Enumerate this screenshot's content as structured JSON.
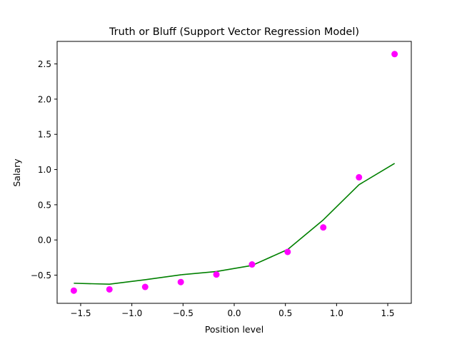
{
  "chart_data": {
    "type": "scatter",
    "title": "Truth or Bluff (Support Vector Regression Model)",
    "xlabel": "Position level",
    "ylabel": "Salary",
    "xlim": [
      -1.73,
      1.73
    ],
    "ylim": [
      -0.9,
      2.82
    ],
    "xticks": [
      {
        "value": -1.5,
        "label": "−1.5"
      },
      {
        "value": -1.0,
        "label": "−1.0"
      },
      {
        "value": -0.5,
        "label": "−0.5"
      },
      {
        "value": 0.0,
        "label": "0.0"
      },
      {
        "value": 0.5,
        "label": "0.5"
      },
      {
        "value": 1.0,
        "label": "1.0"
      },
      {
        "value": 1.5,
        "label": "1.5"
      }
    ],
    "yticks": [
      {
        "value": -0.5,
        "label": "−0.5"
      },
      {
        "value": 0.0,
        "label": "0.0"
      },
      {
        "value": 0.5,
        "label": "0.5"
      },
      {
        "value": 1.0,
        "label": "1.0"
      },
      {
        "value": 1.5,
        "label": "1.5"
      },
      {
        "value": 2.0,
        "label": "2.0"
      },
      {
        "value": 2.5,
        "label": "2.5"
      }
    ],
    "grid": false,
    "legend": "none",
    "series": [
      {
        "kind": "scatter",
        "color": "#ff00ff",
        "x": [
          -1.567,
          -1.219,
          -0.87,
          -0.522,
          -0.174,
          0.174,
          0.522,
          0.87,
          1.219,
          1.567
        ],
        "y": [
          -0.72,
          -0.702,
          -0.667,
          -0.598,
          -0.491,
          -0.348,
          -0.17,
          0.178,
          0.89,
          2.64
        ]
      },
      {
        "kind": "line",
        "color": "#008000",
        "x": [
          -1.567,
          -1.219,
          -0.87,
          -0.522,
          -0.174,
          0.174,
          0.522,
          0.87,
          1.219,
          1.567
        ],
        "y": [
          -0.615,
          -0.628,
          -0.565,
          -0.495,
          -0.448,
          -0.362,
          -0.136,
          0.285,
          0.785,
          1.087
        ]
      }
    ]
  }
}
